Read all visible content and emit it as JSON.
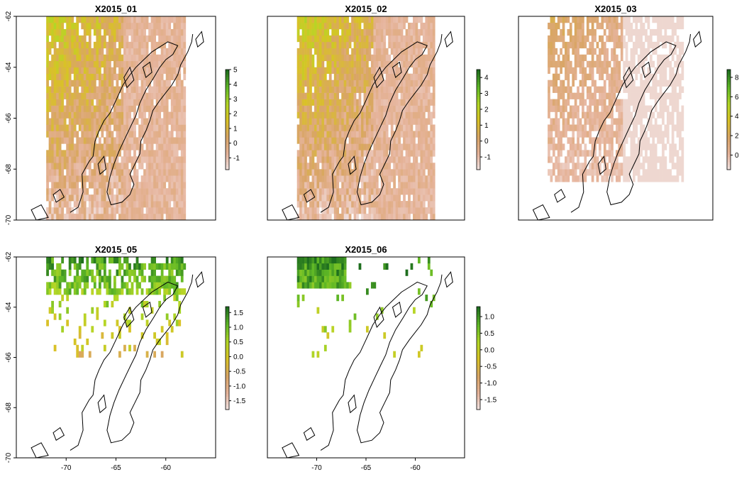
{
  "figure": {
    "coastline_color": "#000000",
    "na_color": "#ffffff",
    "palette": [
      "#f2e6e6",
      "#e6b49c",
      "#d9a566",
      "#d9c226",
      "#b3d726",
      "#5fb826",
      "#1e6e1e"
    ]
  },
  "chart_data": [
    {
      "type": "heatmap",
      "title": "X2015_01",
      "xticks": [],
      "yticks": [
        "-62",
        "-64",
        "-66",
        "-68",
        "-70"
      ],
      "xlim": [
        -75,
        -55
      ],
      "ylim": [
        -70,
        -62
      ],
      "legend": {
        "ticks": [
          "5",
          "4",
          "3",
          "2",
          "1",
          "0",
          "-1"
        ],
        "values": [
          5,
          4,
          3,
          2,
          1,
          0,
          -1
        ],
        "range": [
          -1.8,
          5
        ]
      },
      "extent": {
        "lon": [
          -72,
          -58
        ],
        "lat": [
          -70,
          -62
        ]
      }
    },
    {
      "type": "heatmap",
      "title": "X2015_02",
      "xticks": [],
      "yticks": [],
      "xlim": [
        -75,
        -55
      ],
      "ylim": [
        -70,
        -62
      ],
      "legend": {
        "ticks": [
          "4",
          "3",
          "2",
          "1",
          "0",
          "-1"
        ],
        "values": [
          4,
          3,
          2,
          1,
          0,
          -1
        ],
        "range": [
          -1.8,
          4.5
        ]
      },
      "extent": {
        "lon": [
          -72,
          -58
        ],
        "lat": [
          -70,
          -62
        ]
      }
    },
    {
      "type": "heatmap",
      "title": "X2015_03",
      "xticks": [],
      "yticks": [],
      "xlim": [
        -75,
        -55
      ],
      "ylim": [
        -70,
        -62
      ],
      "legend": {
        "ticks": [
          "8",
          "6",
          "4",
          "2",
          "0"
        ],
        "values": [
          8,
          6,
          4,
          2,
          0
        ],
        "range": [
          -1.5,
          8.8
        ]
      },
      "extent": {
        "lon": [
          -72,
          -58
        ],
        "lat": [
          -68.5,
          -62
        ]
      }
    },
    {
      "type": "heatmap",
      "title": "X2015_05",
      "xticks": [
        "-70",
        "-65",
        "-60"
      ],
      "yticks": [
        "-62",
        "-64",
        "-66",
        "-68",
        "-70"
      ],
      "xlim": [
        -75,
        -55
      ],
      "ylim": [
        -70,
        -62
      ],
      "legend": {
        "ticks": [
          "1.5",
          "1.0",
          "0.5",
          "0.0",
          "-0.5",
          "-1.0",
          "-1.5"
        ],
        "values": [
          1.5,
          1.0,
          0.5,
          0.0,
          -0.5,
          -1.0,
          -1.5
        ],
        "range": [
          -1.8,
          1.7
        ]
      },
      "extent": {
        "lon": [
          -72,
          -58
        ],
        "lat": [
          -66,
          -62
        ]
      }
    },
    {
      "type": "heatmap",
      "title": "X2015_06",
      "xticks": [
        "-70",
        "-65",
        "-60"
      ],
      "yticks": [],
      "xlim": [
        -75,
        -55
      ],
      "ylim": [
        -70,
        -62
      ],
      "legend": {
        "ticks": [
          "1.0",
          "0.5",
          "0.0",
          "-0.5",
          "-1.0",
          "-1.5"
        ],
        "values": [
          1.0,
          0.5,
          0.0,
          -0.5,
          -1.0,
          -1.5
        ],
        "range": [
          -1.8,
          1.3
        ]
      },
      "extent": {
        "lon": [
          -72,
          -58
        ],
        "lat": [
          -66,
          -62
        ]
      }
    }
  ]
}
